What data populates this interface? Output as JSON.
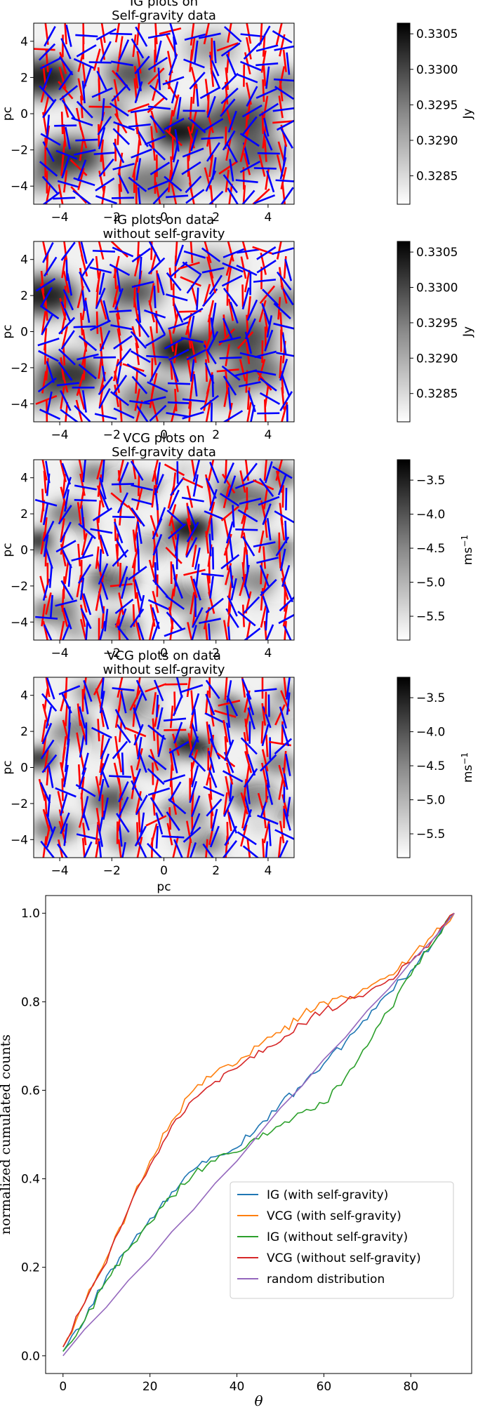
{
  "panels": [
    {
      "title_lines": [
        "IG plots on",
        "Self-gravity data"
      ],
      "ylabel": "pc",
      "xlabel": "",
      "xticks": [
        "−4",
        "−2",
        "0",
        "2",
        "4"
      ],
      "yticks": [
        "−4",
        "−2",
        "0",
        "2",
        "4"
      ],
      "cbar_label": "Jy",
      "cbar_ticks": [
        "0.3285",
        "0.3290",
        "0.3295",
        "0.3300",
        "0.3305"
      ],
      "cbar_range": [
        0.3281,
        0.33065
      ],
      "xlim": [
        -5,
        5
      ],
      "ylim": [
        -5,
        5
      ],
      "colormap": "grayscale (white = low, black = high)",
      "overlay_colors": [
        "#ff0000",
        "#0000ff"
      ]
    },
    {
      "title_lines": [
        "IG plots on data",
        "without self-gravity"
      ],
      "ylabel": "pc",
      "xlabel": "",
      "xticks": [
        "−4",
        "−2",
        "0",
        "2",
        "4"
      ],
      "yticks": [
        "−4",
        "−2",
        "0",
        "2",
        "4"
      ],
      "cbar_label": "Jy",
      "cbar_ticks": [
        "0.3285",
        "0.3290",
        "0.3295",
        "0.3300",
        "0.3305"
      ],
      "cbar_range": [
        0.3281,
        0.33065
      ],
      "xlim": [
        -5,
        5
      ],
      "ylim": [
        -5,
        5
      ],
      "colormap": "grayscale (white = low, black = high)",
      "overlay_colors": [
        "#ff0000",
        "#0000ff"
      ]
    },
    {
      "title_lines": [
        "VCG plots on",
        "Self-gravity data"
      ],
      "ylabel": "pc",
      "xlabel": "",
      "xticks": [
        "−4",
        "−2",
        "0",
        "2",
        "4"
      ],
      "yticks": [
        "−4",
        "−2",
        "0",
        "2",
        "4"
      ],
      "cbar_label": "ms",
      "cbar_label_sup": "−1",
      "cbar_ticks": [
        "−5.5",
        "−5.0",
        "−4.5",
        "−4.0",
        "−3.5"
      ],
      "cbar_range": [
        -5.85,
        -3.2
      ],
      "xlim": [
        -5,
        5
      ],
      "ylim": [
        -5,
        5
      ],
      "colormap": "grayscale (white = low, black = high)",
      "overlay_colors": [
        "#ff0000",
        "#0000ff"
      ]
    },
    {
      "title_lines": [
        "VCG plots on data",
        "without self-gravity"
      ],
      "ylabel": "pc",
      "xlabel": "pc",
      "xticks": [
        "−4",
        "−2",
        "0",
        "2",
        "4"
      ],
      "yticks": [
        "−4",
        "−2",
        "0",
        "2",
        "4"
      ],
      "cbar_label": "ms",
      "cbar_label_sup": "−1",
      "cbar_ticks": [
        "−5.5",
        "−5.0",
        "−4.5",
        "−4.0",
        "−3.5"
      ],
      "cbar_range": [
        -5.85,
        -3.2
      ],
      "xlim": [
        -5,
        5
      ],
      "ylim": [
        -5,
        5
      ],
      "colormap": "grayscale (white = low, black = high)",
      "overlay_colors": [
        "#ff0000",
        "#0000ff"
      ]
    }
  ],
  "chart_data": {
    "type": "line",
    "title": "",
    "xlabel": "θ",
    "ylabel": "normalized cumulated counts",
    "xlim": [
      -4,
      94
    ],
    "ylim": [
      -0.04,
      1.04
    ],
    "xticks": [
      "0",
      "20",
      "40",
      "60",
      "80"
    ],
    "yticks": [
      "0.0",
      "0.2",
      "0.4",
      "0.6",
      "0.8",
      "1.0"
    ],
    "grid": false,
    "legend_position": "lower-right",
    "x": [
      0,
      5,
      10,
      15,
      20,
      25,
      30,
      35,
      40,
      45,
      50,
      55,
      60,
      65,
      70,
      75,
      80,
      85,
      90
    ],
    "series": [
      {
        "name": "IG (with self-gravity)",
        "color": "#1f77b4",
        "values": [
          0.01,
          0.08,
          0.18,
          0.24,
          0.31,
          0.37,
          0.42,
          0.45,
          0.47,
          0.52,
          0.57,
          0.61,
          0.66,
          0.71,
          0.76,
          0.82,
          0.87,
          0.93,
          1.0
        ]
      },
      {
        "name": "VCG (with self-gravity)",
        "color": "#ff7f0e",
        "values": [
          0.02,
          0.12,
          0.22,
          0.33,
          0.44,
          0.53,
          0.6,
          0.64,
          0.66,
          0.7,
          0.73,
          0.77,
          0.8,
          0.81,
          0.83,
          0.86,
          0.9,
          0.95,
          1.0
        ]
      },
      {
        "name": "IG (without self-gravity)",
        "color": "#2ca02c",
        "values": [
          0.01,
          0.08,
          0.17,
          0.24,
          0.3,
          0.36,
          0.41,
          0.44,
          0.46,
          0.49,
          0.52,
          0.55,
          0.57,
          0.63,
          0.7,
          0.78,
          0.86,
          0.93,
          1.0
        ]
      },
      {
        "name": "VCG (without self-gravity)",
        "color": "#d62728",
        "values": [
          0.02,
          0.12,
          0.21,
          0.33,
          0.43,
          0.52,
          0.58,
          0.62,
          0.65,
          0.69,
          0.71,
          0.75,
          0.78,
          0.8,
          0.82,
          0.85,
          0.89,
          0.94,
          1.0
        ]
      },
      {
        "name": "random distribution",
        "color": "#9467bd",
        "values": [
          0.0,
          0.06,
          0.11,
          0.17,
          0.22,
          0.28,
          0.33,
          0.39,
          0.44,
          0.5,
          0.56,
          0.61,
          0.67,
          0.72,
          0.78,
          0.83,
          0.89,
          0.94,
          1.0
        ]
      }
    ]
  }
}
